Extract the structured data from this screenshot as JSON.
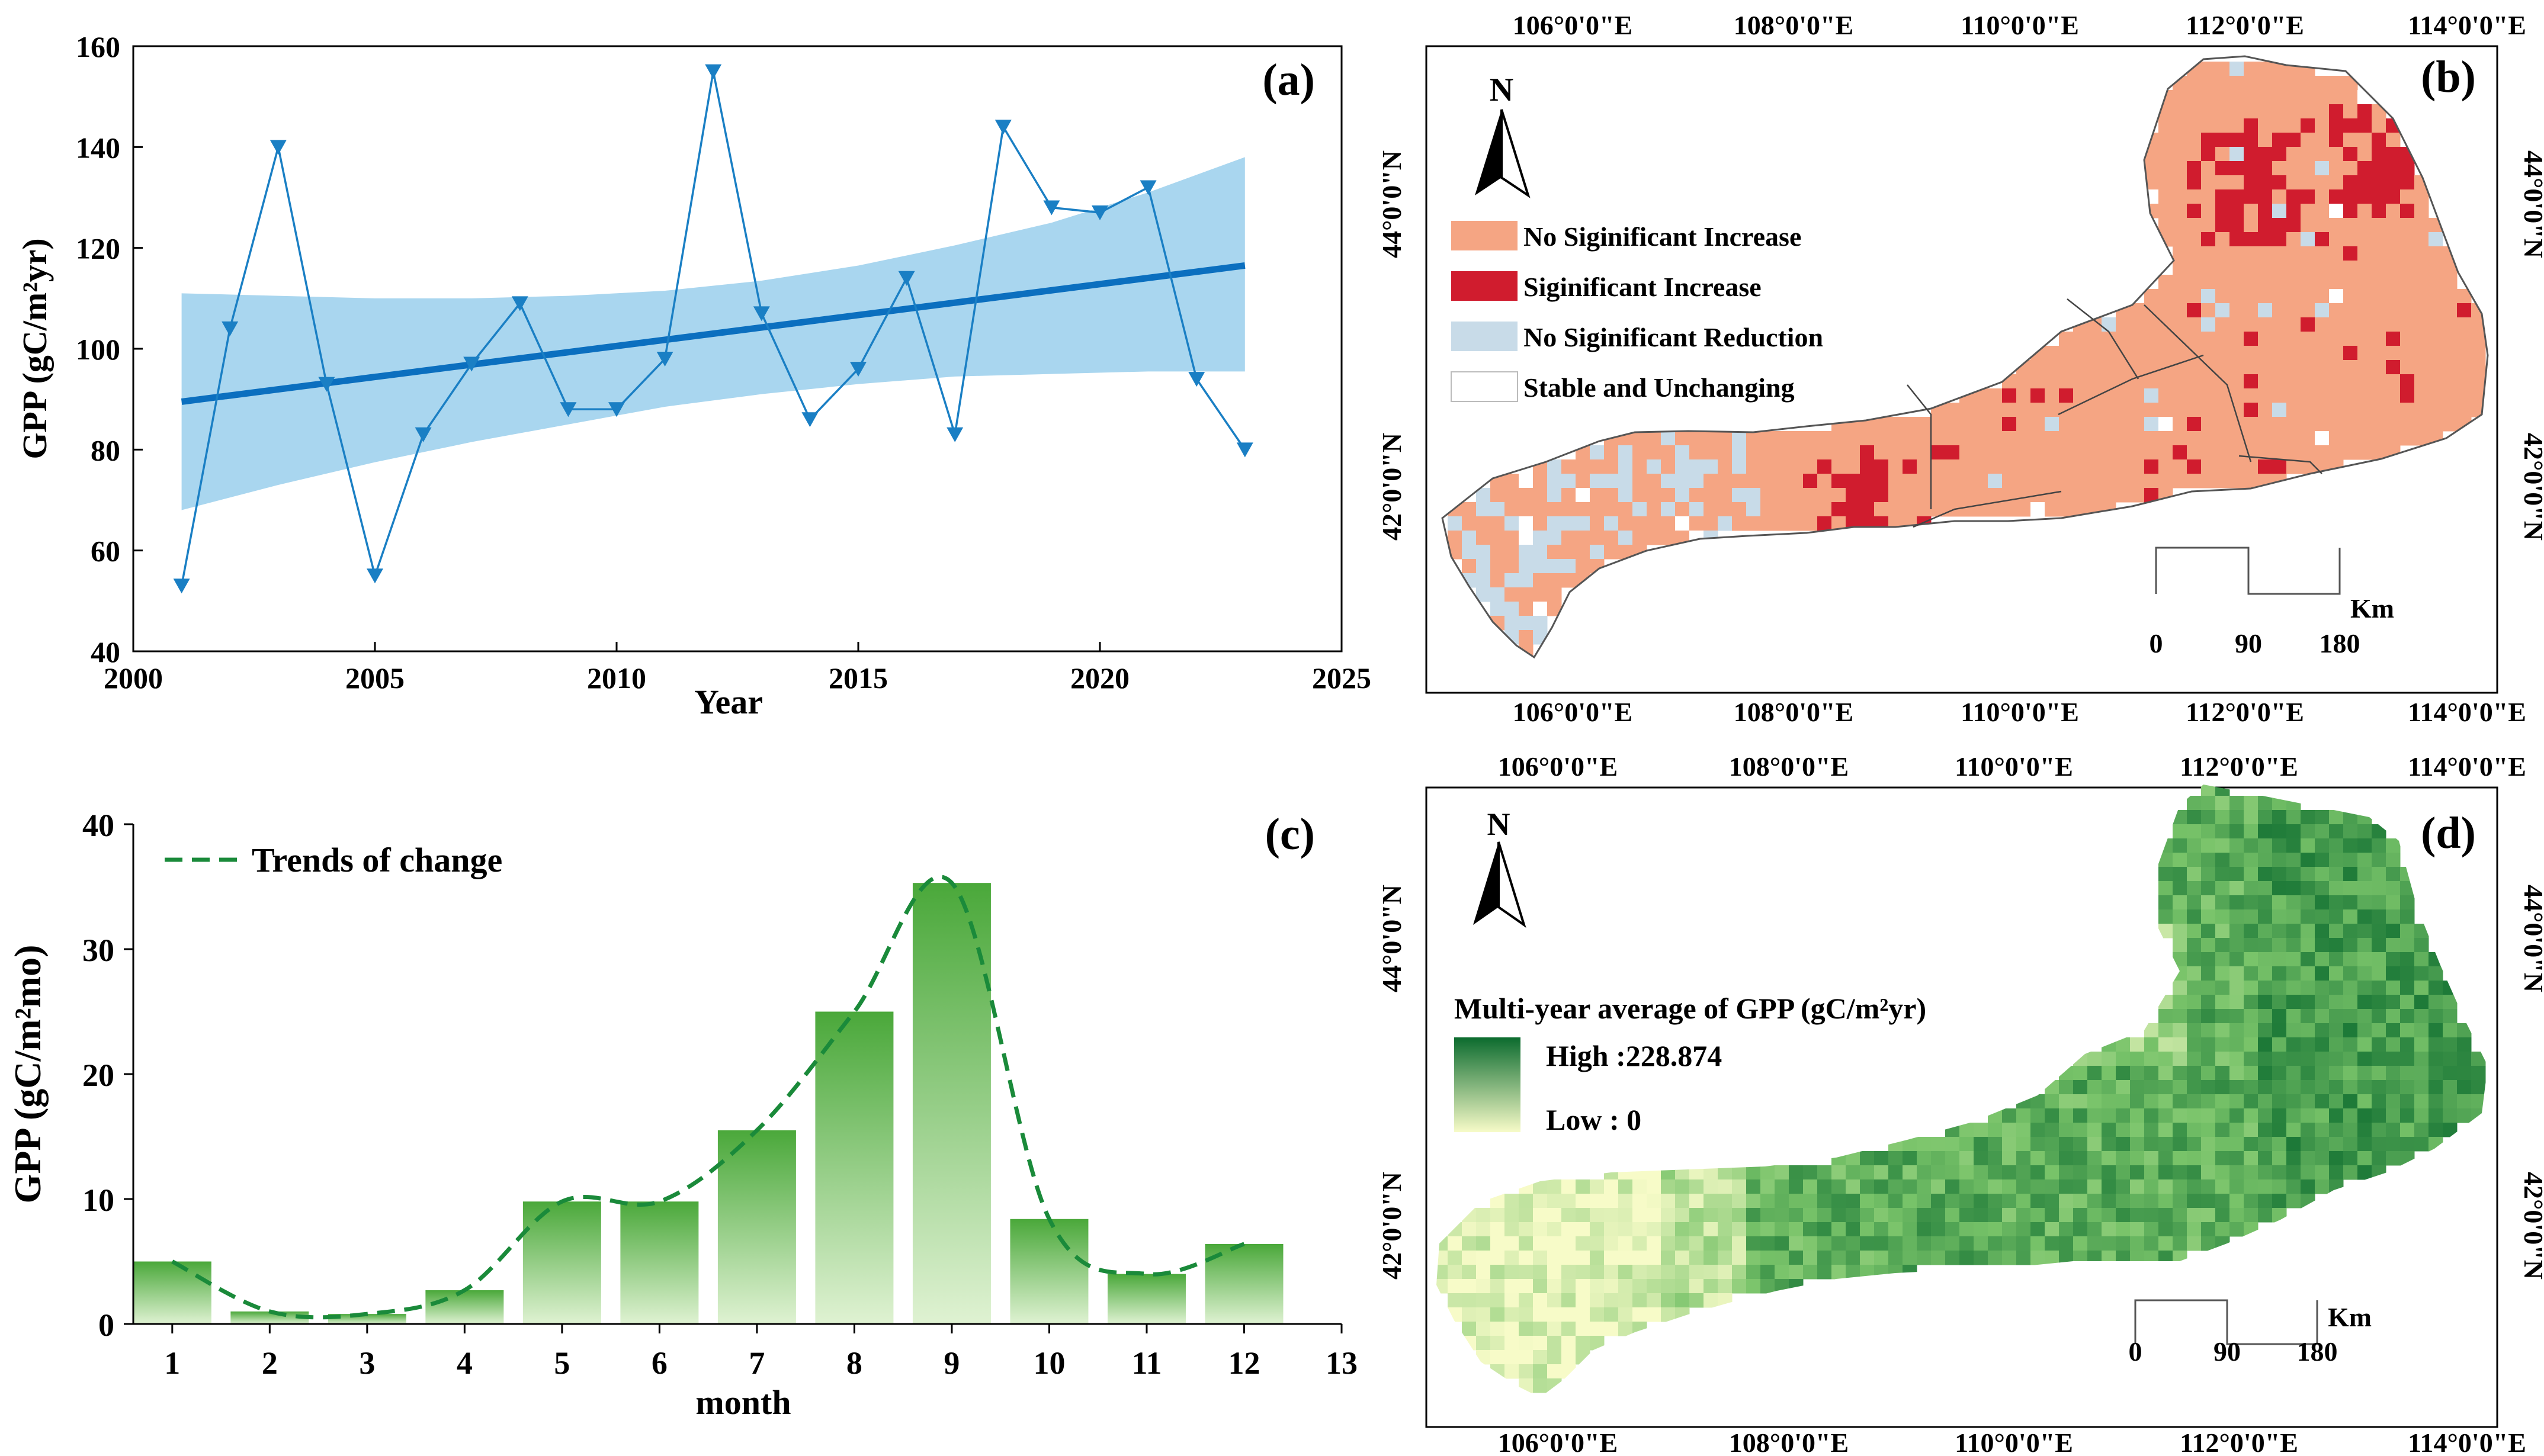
{
  "chart_data": [
    {
      "panel_label": "(a)",
      "type": "line",
      "xlabel": "Year",
      "ylabel": "GPP (gC/m²yr)",
      "xlim": [
        2000,
        2025
      ],
      "ylim": [
        40,
        160
      ],
      "xticks": [
        2000,
        2005,
        2010,
        2015,
        2020,
        2025
      ],
      "yticks": [
        40,
        60,
        80,
        100,
        120,
        140,
        160
      ],
      "grid": false,
      "series": [
        {
          "x": [
            2001,
            2002,
            2003,
            2004,
            2005,
            2006,
            2007,
            2008,
            2009,
            2010,
            2011,
            2012,
            2013,
            2014,
            2015,
            2016,
            2017,
            2018,
            2019,
            2020,
            2021,
            2022,
            2023
          ],
          "values": [
            53,
            104,
            140,
            93,
            55,
            83,
            97,
            109,
            88,
            88,
            98,
            155,
            107,
            86,
            96,
            114,
            83,
            144,
            128,
            127,
            132,
            94,
            80
          ],
          "color": "#1a7fc4",
          "marker": "triangle-down"
        }
      ],
      "trend": {
        "x": [
          2001,
          2023
        ],
        "values": [
          89.5,
          116.5
        ],
        "color": "#0b6fbf"
      },
      "confidence_band": {
        "x": [
          2001,
          2003,
          2005,
          2007,
          2009,
          2011,
          2013,
          2015,
          2017,
          2019,
          2021,
          2023
        ],
        "upper": [
          111,
          110.5,
          110,
          110,
          110.5,
          111.5,
          113.5,
          116.5,
          120.5,
          125,
          131,
          138
        ],
        "lower": [
          68,
          73,
          77.5,
          81.5,
          85,
          88.5,
          91,
          93,
          94.5,
          95,
          95.5,
          95.5
        ],
        "color": "#a9d6ef"
      }
    },
    {
      "panel_label": "(b)",
      "type": "map",
      "top_axis": [
        "106°0'0\"E",
        "108°0'0\"E",
        "110°0'0\"E",
        "112°0'0\"E",
        "114°0'0\"E"
      ],
      "bottom_axis": [
        "106°0'0\"E",
        "108°0'0\"E",
        "110°0'0\"E",
        "112°0'0\"E",
        "114°0'0\"E"
      ],
      "side_axis": [
        "44°0'0\"N",
        "42°0'0\"N"
      ],
      "north_label": "N",
      "legend": [
        {
          "label": "No Siginificant Increase",
          "color": "#f5a583"
        },
        {
          "label": "Siginificant Increase",
          "color": "#d01c2e"
        },
        {
          "label": "No Siginificant Reduction",
          "color": "#c8dbe8"
        },
        {
          "label": "Stable and Unchanging",
          "color": "#ffffff"
        }
      ],
      "scale_bar": {
        "unit": "Km",
        "labels": [
          "0",
          "90",
          "180"
        ]
      }
    },
    {
      "panel_label": "(c)",
      "type": "bar",
      "xlabel": "month",
      "ylabel": "GPP (gC/m²mo)",
      "xlim": [
        0.6,
        13
      ],
      "ylim": [
        0,
        40
      ],
      "xticks": [
        1,
        2,
        3,
        4,
        5,
        6,
        7,
        8,
        9,
        10,
        11,
        12,
        13
      ],
      "yticks": [
        0,
        10,
        20,
        30,
        40
      ],
      "categories": [
        1,
        2,
        3,
        4,
        5,
        6,
        7,
        8,
        9,
        10,
        11,
        12
      ],
      "values": [
        5,
        1,
        0.8,
        2.7,
        9.8,
        9.8,
        15.5,
        25,
        35.3,
        8.4,
        4,
        6.4
      ],
      "trend_line": {
        "name": "Trends of change",
        "color": "#1a8a3a"
      },
      "bar_color_top": "#4aa83a",
      "bar_color_bottom": "#dff2d2"
    },
    {
      "panel_label": "(d)",
      "type": "heatmap",
      "top_axis": [
        "106°0'0\"E",
        "108°0'0\"E",
        "110°0'0\"E",
        "112°0'0\"E",
        "114°0'0\"E"
      ],
      "bottom_axis": [
        "106°0'0\"E",
        "108°0'0\"E",
        "110°0'0\"E",
        "112°0'0\"E",
        "114°0'0\"E"
      ],
      "side_axis": [
        "44°0'0\"N",
        "42°0'0\"N"
      ],
      "north_label": "N",
      "legend_title": "Multi-year average of GPP (gC/m²yr)",
      "legend_high": "High :228.874",
      "legend_low": "Low : 0",
      "color_high": "#0b6b2e",
      "color_low": "#f7fbc8",
      "scale_bar": {
        "unit": "Km",
        "labels": [
          "0",
          "90",
          "180"
        ]
      }
    }
  ]
}
